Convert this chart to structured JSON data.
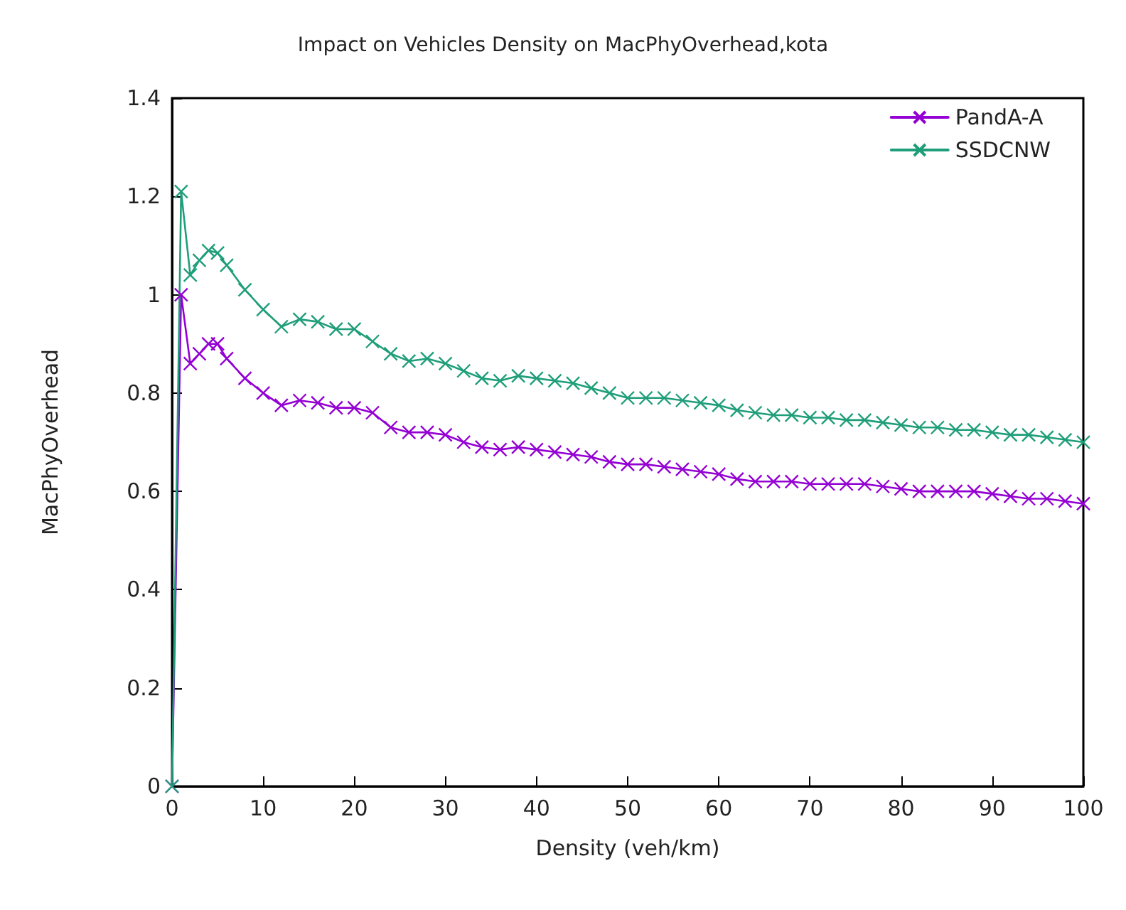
{
  "chart_data": {
    "type": "line",
    "title": "Impact on Vehicles Density on MacPhyOverhead,kota",
    "xlabel": "Density (veh/km)",
    "ylabel": "MacPhyOverhead",
    "x": [
      0,
      1,
      2,
      3,
      4,
      5,
      6,
      8,
      10,
      12,
      14,
      16,
      18,
      20,
      22,
      24,
      26,
      28,
      30,
      32,
      34,
      36,
      38,
      40,
      42,
      44,
      46,
      48,
      50,
      52,
      54,
      56,
      58,
      60,
      62,
      64,
      66,
      68,
      70,
      72,
      74,
      76,
      78,
      80,
      82,
      84,
      86,
      88,
      90,
      92,
      94,
      96,
      98,
      100
    ],
    "series": [
      {
        "name": "PandA-A",
        "color": "#9400d3",
        "values": [
          0,
          1.0,
          0.86,
          0.88,
          0.9,
          0.9,
          0.87,
          0.83,
          0.8,
          0.775,
          0.785,
          0.78,
          0.77,
          0.77,
          0.76,
          0.73,
          0.72,
          0.72,
          0.715,
          0.7,
          0.69,
          0.685,
          0.69,
          0.685,
          0.68,
          0.675,
          0.67,
          0.66,
          0.655,
          0.655,
          0.65,
          0.645,
          0.64,
          0.635,
          0.625,
          0.62,
          0.62,
          0.62,
          0.615,
          0.615,
          0.615,
          0.615,
          0.61,
          0.605,
          0.6,
          0.6,
          0.6,
          0.6,
          0.595,
          0.59,
          0.585,
          0.585,
          0.58,
          0.575
        ]
      },
      {
        "name": "SSDCNW",
        "color": "#1f9e7a",
        "values": [
          0,
          1.21,
          1.04,
          1.07,
          1.09,
          1.085,
          1.06,
          1.01,
          0.97,
          0.935,
          0.95,
          0.945,
          0.93,
          0.93,
          0.905,
          0.88,
          0.865,
          0.87,
          0.86,
          0.845,
          0.83,
          0.825,
          0.835,
          0.83,
          0.825,
          0.82,
          0.81,
          0.8,
          0.79,
          0.79,
          0.79,
          0.785,
          0.78,
          0.775,
          0.765,
          0.76,
          0.755,
          0.755,
          0.75,
          0.75,
          0.745,
          0.745,
          0.74,
          0.735,
          0.73,
          0.73,
          0.725,
          0.725,
          0.72,
          0.715,
          0.715,
          0.71,
          0.705,
          0.7
        ]
      }
    ],
    "xlim": [
      0,
      100
    ],
    "xticks": [
      0,
      10,
      20,
      30,
      40,
      50,
      60,
      70,
      80,
      90,
      100
    ],
    "ylim": [
      0,
      1.4
    ],
    "yticks": [
      0,
      0.2,
      0.4,
      0.6,
      0.8,
      1,
      1.2,
      1.4
    ],
    "grid": false,
    "legend": "top right",
    "marker": "cross"
  }
}
